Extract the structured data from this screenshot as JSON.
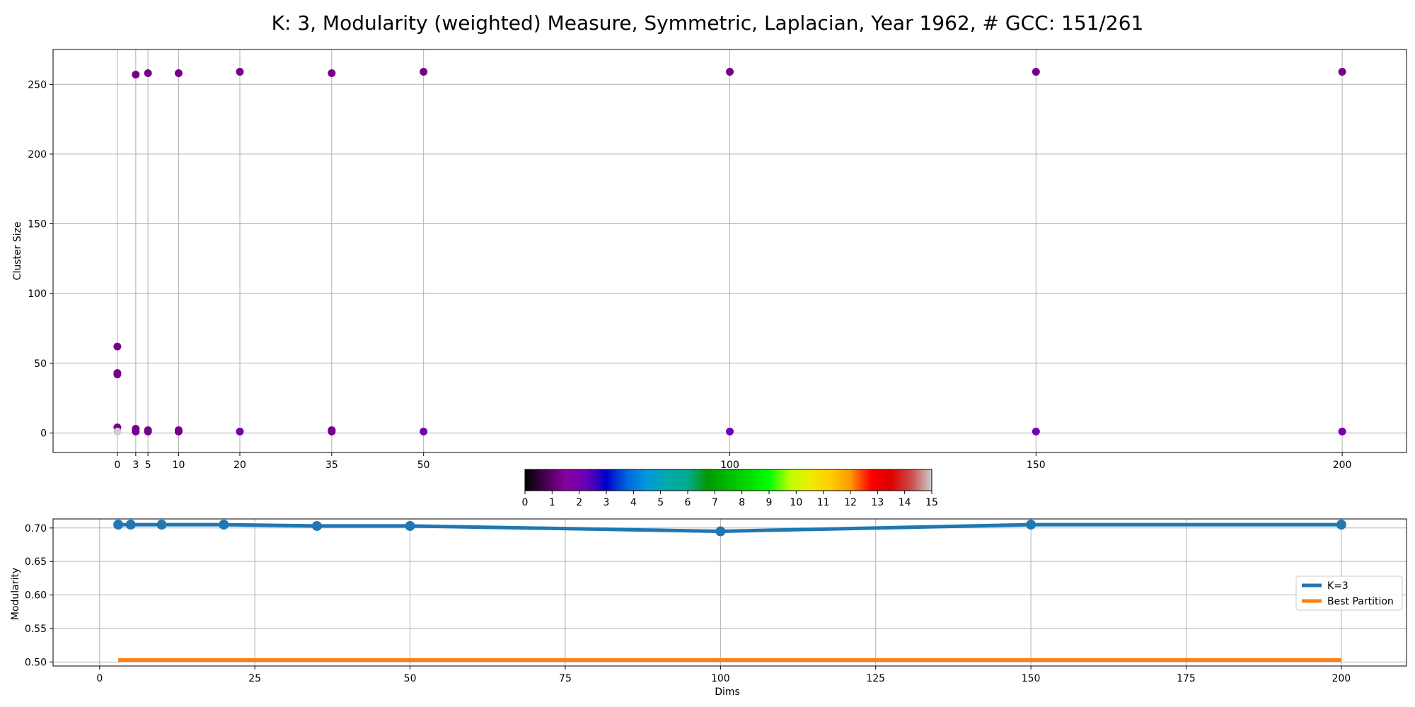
{
  "title": "K: 3, Modularity (weighted) Measure, Symmetric, Laplacian, Year 1962, # GCC: 151/261",
  "chart_data": [
    {
      "type": "scatter",
      "ylabel": "Cluster Size",
      "xlabel": "",
      "x_ticks": [
        0,
        3,
        5,
        10,
        20,
        35,
        50,
        100,
        150,
        200
      ],
      "y_ticks": [
        0,
        50,
        100,
        150,
        200,
        250
      ],
      "xlim": [
        -10.5,
        210.5
      ],
      "ylim": [
        -14,
        275
      ],
      "grid": "vertical at x ticks, horizontal at y ticks",
      "color_scale": "nipy_spectral",
      "color_range": [
        0,
        15
      ],
      "points": [
        {
          "x": 0,
          "y": 62,
          "c": 1.3
        },
        {
          "x": 0,
          "y": 43,
          "c": 1.3
        },
        {
          "x": 0,
          "y": 42,
          "c": 1.3
        },
        {
          "x": 0,
          "y": 4,
          "c": 1.3
        },
        {
          "x": 0,
          "y": 1,
          "c": 15
        },
        {
          "x": 3,
          "y": 257,
          "c": 1.3
        },
        {
          "x": 3,
          "y": 3,
          "c": 1.3
        },
        {
          "x": 3,
          "y": 1,
          "c": 1.3
        },
        {
          "x": 5,
          "y": 258,
          "c": 1.3
        },
        {
          "x": 5,
          "y": 2,
          "c": 1.3
        },
        {
          "x": 5,
          "y": 1,
          "c": 1.3
        },
        {
          "x": 10,
          "y": 258,
          "c": 1.3
        },
        {
          "x": 10,
          "y": 2,
          "c": 1.3
        },
        {
          "x": 10,
          "y": 1,
          "c": 1.3
        },
        {
          "x": 20,
          "y": 259,
          "c": 1.3
        },
        {
          "x": 20,
          "y": 1,
          "c": 2.0
        },
        {
          "x": 35,
          "y": 258,
          "c": 1.3
        },
        {
          "x": 35,
          "y": 2,
          "c": 1.3
        },
        {
          "x": 35,
          "y": 1,
          "c": 1.3
        },
        {
          "x": 50,
          "y": 259,
          "c": 1.3
        },
        {
          "x": 50,
          "y": 1,
          "c": 2.0
        },
        {
          "x": 100,
          "y": 259,
          "c": 1.3
        },
        {
          "x": 100,
          "y": 1,
          "c": 2.0
        },
        {
          "x": 150,
          "y": 259,
          "c": 1.3
        },
        {
          "x": 150,
          "y": 1,
          "c": 2.0
        },
        {
          "x": 200,
          "y": 259,
          "c": 1.3
        },
        {
          "x": 200,
          "y": 1,
          "c": 2.0
        }
      ]
    },
    {
      "type": "colorbar",
      "ticks": [
        0,
        1,
        2,
        3,
        4,
        5,
        6,
        7,
        8,
        9,
        10,
        11,
        12,
        13,
        14,
        15
      ],
      "range": [
        0,
        15
      ]
    },
    {
      "type": "line",
      "xlabel": "Dims",
      "ylabel": "Modularity",
      "x_ticks": [
        0,
        25,
        50,
        75,
        100,
        125,
        150,
        175,
        200
      ],
      "y_ticks": [
        0.5,
        0.55,
        0.6,
        0.65,
        0.7
      ],
      "y_tick_labels": [
        "0.50",
        "0.55",
        "0.60",
        "0.65",
        "0.70"
      ],
      "xlim": [
        -7.5,
        210.5
      ],
      "ylim": [
        0.494,
        0.7135
      ],
      "grid": true,
      "legend_position": "right",
      "series": [
        {
          "name": "K=3",
          "color": "#1f77b4",
          "markers": true,
          "x": [
            3,
            5,
            10,
            20,
            35,
            50,
            100,
            150,
            200
          ],
          "y": [
            0.705,
            0.705,
            0.705,
            0.705,
            0.703,
            0.703,
            0.695,
            0.705,
            0.705
          ]
        },
        {
          "name": "Best Partition",
          "color": "#ff7f0e",
          "markers": false,
          "x": [
            3,
            5,
            10,
            20,
            35,
            50,
            100,
            150,
            200
          ],
          "y": [
            0.503,
            0.503,
            0.503,
            0.503,
            0.503,
            0.503,
            0.503,
            0.503,
            0.503
          ]
        }
      ]
    }
  ]
}
